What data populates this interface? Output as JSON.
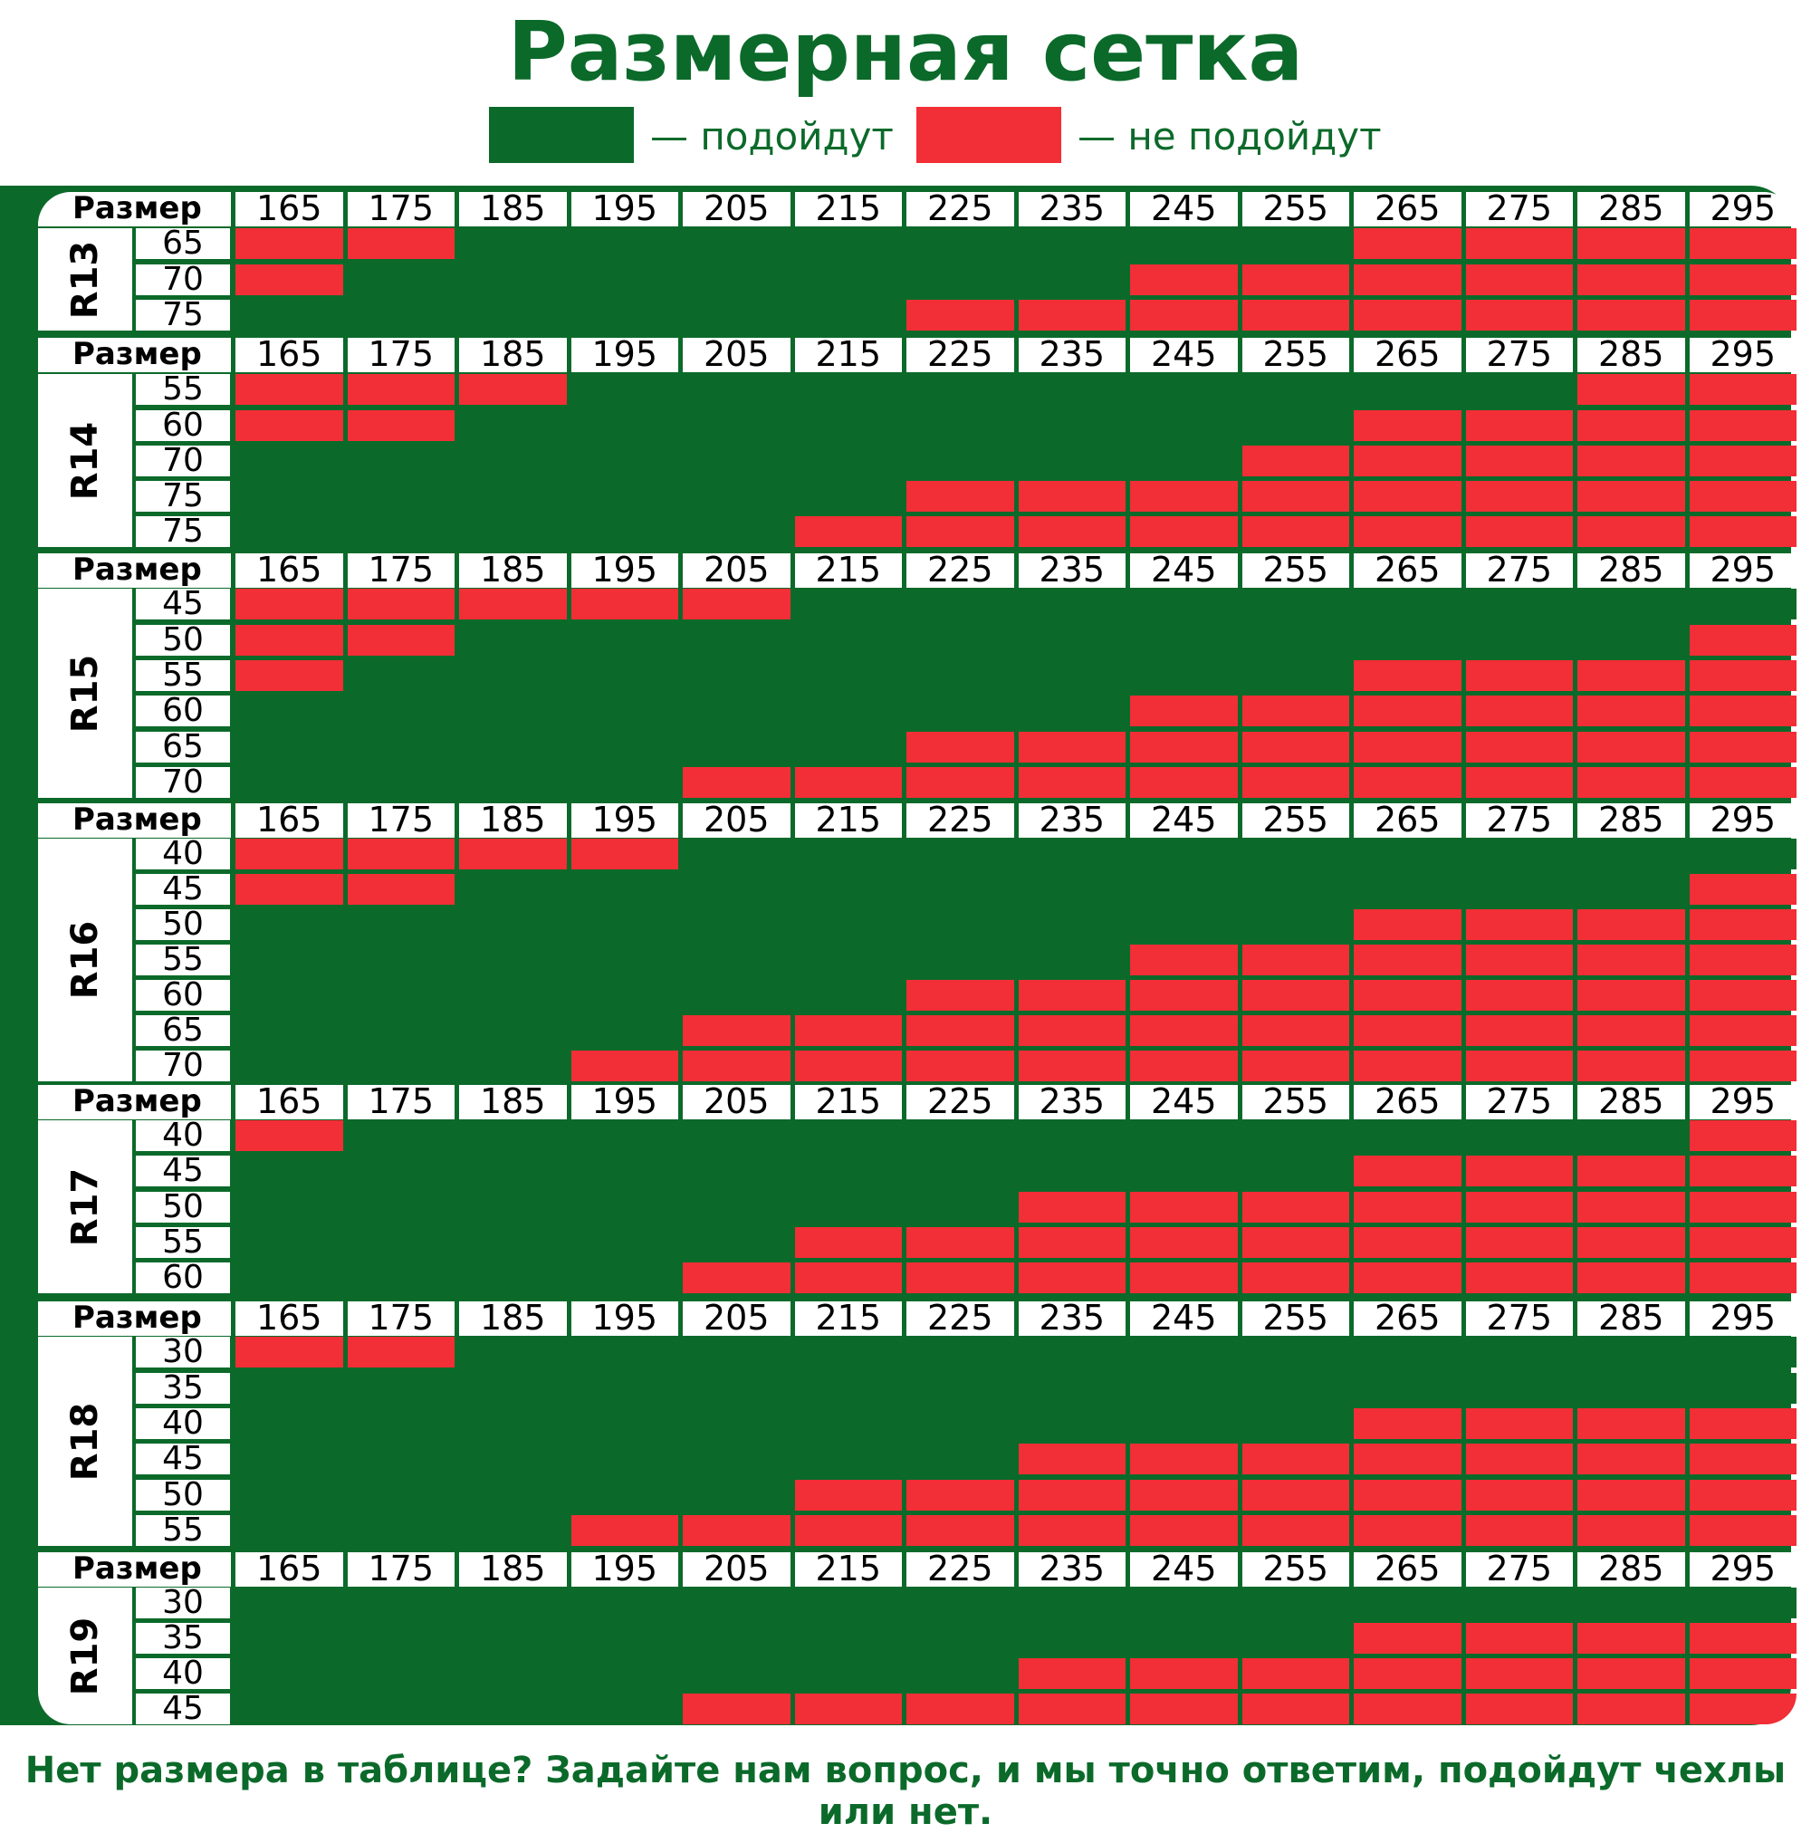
{
  "title": "Размерная сетка",
  "legend": [
    {
      "label": "— подойдут",
      "color": "#0b6a2a"
    },
    {
      "label": "— не подойдут",
      "color": "#f22e36"
    }
  ],
  "header_label": "Размер",
  "widths": [
    "165",
    "175",
    "185",
    "195",
    "205",
    "215",
    "225",
    "235",
    "245",
    "255",
    "265",
    "275",
    "285",
    "295"
  ],
  "colors": {
    "fit": "#0b6a2a",
    "nofit": "#f22e36",
    "frame": "#0b6a2a"
  },
  "sections": [
    {
      "rim": "R13",
      "rows": [
        {
          "profile": "65",
          "fit": "00111111110000"
        },
        {
          "profile": "70",
          "fit": "01111111000000"
        },
        {
          "profile": "75",
          "fit": "11111100000000"
        }
      ]
    },
    {
      "rim": "R14",
      "rows": [
        {
          "profile": "55",
          "fit": "00011111111100"
        },
        {
          "profile": "60",
          "fit": "00111111110000"
        },
        {
          "profile": "70",
          "fit": "11111111100000"
        },
        {
          "profile": "75",
          "fit": "11111100000000"
        },
        {
          "profile": "75",
          "fit": "11111000000000"
        }
      ]
    },
    {
      "rim": "R15",
      "rows": [
        {
          "profile": "45",
          "fit": "00000111111111"
        },
        {
          "profile": "50",
          "fit": "00111111111110"
        },
        {
          "profile": "55",
          "fit": "01111111110000"
        },
        {
          "profile": "60",
          "fit": "11111111000000"
        },
        {
          "profile": "65",
          "fit": "11111100000000"
        },
        {
          "profile": "70",
          "fit": "11110000000000"
        }
      ]
    },
    {
      "rim": "R16",
      "rows": [
        {
          "profile": "40",
          "fit": "00001111111111"
        },
        {
          "profile": "45",
          "fit": "00111111111110"
        },
        {
          "profile": "50",
          "fit": "11111111110000"
        },
        {
          "profile": "55",
          "fit": "11111111000000"
        },
        {
          "profile": "60",
          "fit": "11111100000000"
        },
        {
          "profile": "65",
          "fit": "11110000000000"
        },
        {
          "profile": "70",
          "fit": "11100000000000"
        }
      ]
    },
    {
      "rim": "R17",
      "rows": [
        {
          "profile": "40",
          "fit": "01111111111110"
        },
        {
          "profile": "45",
          "fit": "11111111110000"
        },
        {
          "profile": "50",
          "fit": "11111110000000"
        },
        {
          "profile": "55",
          "fit": "11111000000000"
        },
        {
          "profile": "60",
          "fit": "11110000000000"
        }
      ]
    },
    {
      "rim": "R18",
      "rows": [
        {
          "profile": "30",
          "fit": "00111111111111"
        },
        {
          "profile": "35",
          "fit": "11111111111111"
        },
        {
          "profile": "40",
          "fit": "11111111110000"
        },
        {
          "profile": "45",
          "fit": "11111110000000"
        },
        {
          "profile": "50",
          "fit": "11111000000000"
        },
        {
          "profile": "55",
          "fit": "11100000000000"
        }
      ]
    },
    {
      "rim": "R19",
      "rows": [
        {
          "profile": "30",
          "fit": "11111111111111"
        },
        {
          "profile": "35",
          "fit": "11111111110000"
        },
        {
          "profile": "40",
          "fit": "11111110000000"
        },
        {
          "profile": "45",
          "fit": "11110000000000"
        }
      ]
    }
  ],
  "footer": "Нет размера в таблице? Задайте нам вопрос, и мы точно ответим, подойдут чехлы или нет."
}
